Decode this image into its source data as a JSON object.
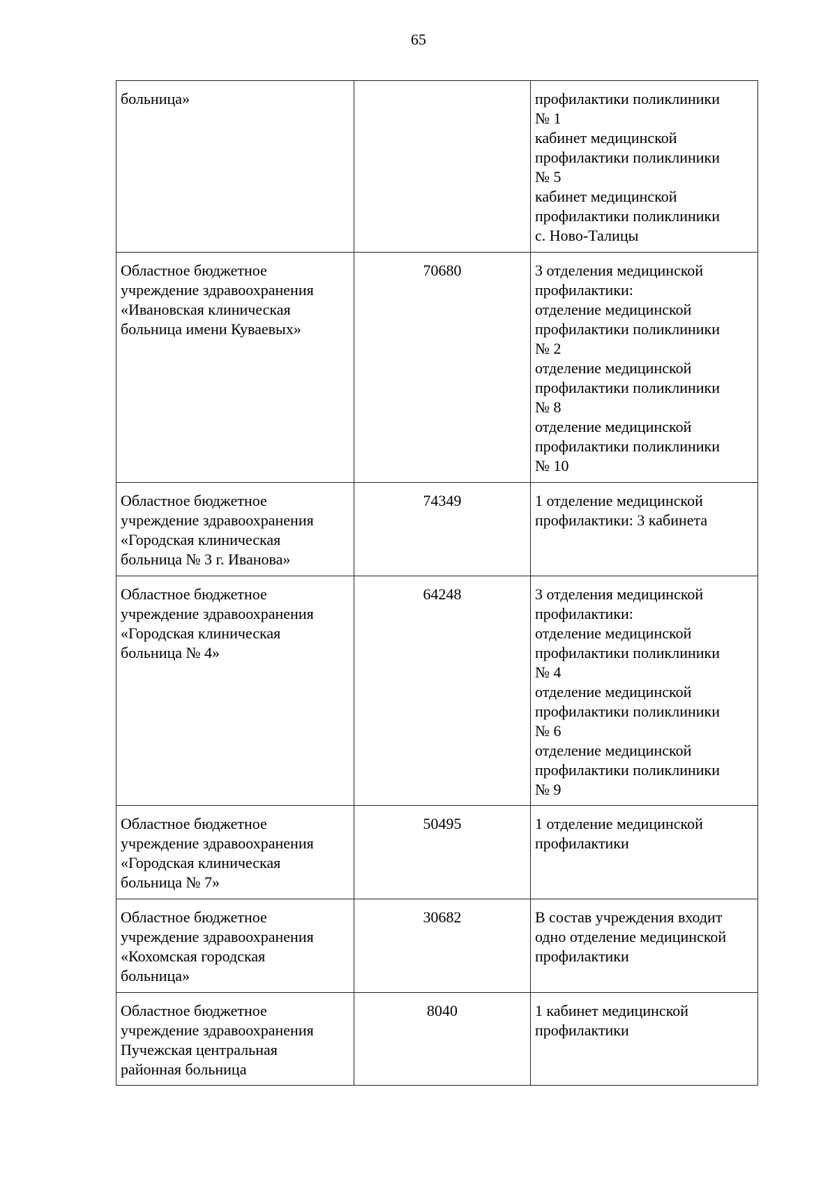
{
  "page_number": "65",
  "rows": [
    {
      "institution": "больница»",
      "population": "",
      "units": "профилактики поликлиники\n№ 1\nкабинет медицинской\nпрофилактики поликлиники\n№ 5\nкабинет медицинской\nпрофилактики поликлиники\nс. Ново-Талицы"
    },
    {
      "institution": "Областное бюджетное\nучреждение здравоохранения\n«Ивановская клиническая\nбольница имени Куваевых»",
      "population": "70680",
      "units": "3 отделения медицинской\nпрофилактики:\nотделение медицинской\nпрофилактики поликлиники\n№ 2\nотделение медицинской\nпрофилактики поликлиники\n№ 8\nотделение медицинской\nпрофилактики поликлиники\n№ 10"
    },
    {
      "institution": "Областное бюджетное\nучреждение здравоохранения\n«Городская клиническая\nбольница № 3 г. Иванова»",
      "population": "74349",
      "units": "1 отделение медицинской\nпрофилактики: 3 кабинета"
    },
    {
      "institution": "Областное бюджетное\nучреждение здравоохранения\n«Городская клиническая\nбольница № 4»",
      "population": "64248",
      "units": "3 отделения медицинской\nпрофилактики:\nотделение медицинской\nпрофилактики поликлиники\n№ 4\nотделение медицинской\nпрофилактики поликлиники\n№ 6\nотделение медицинской\nпрофилактики поликлиники\n№ 9"
    },
    {
      "institution": "Областное бюджетное\nучреждение здравоохранения\n«Городская клиническая\nбольница № 7»",
      "population": "50495",
      "units": "1 отделение медицинской\nпрофилактики"
    },
    {
      "institution": "Областное бюджетное\nучреждение здравоохранения\n«Кохомская городская\nбольница»",
      "population": "30682",
      "units": "В состав учреждения входит\nодно отделение медицинской\nпрофилактики"
    },
    {
      "institution": "Областное бюджетное\nучреждение здравоохранения\nПучежская центральная\nрайонная больница",
      "population": "8040",
      "units": "1 кабинет медицинской\nпрофилактики"
    }
  ]
}
